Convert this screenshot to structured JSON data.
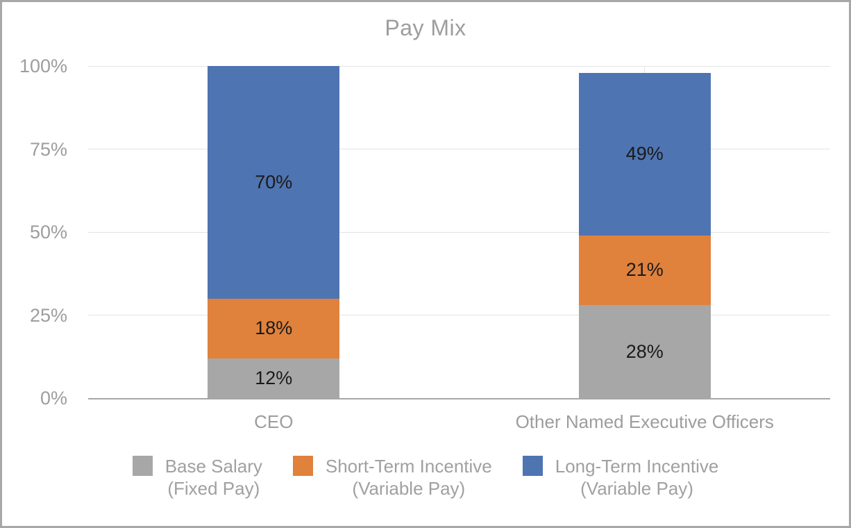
{
  "chart_data": {
    "type": "bar",
    "stacked": true,
    "title": "Pay Mix",
    "categories": [
      "CEO",
      "Other Named Executive Officers"
    ],
    "series": [
      {
        "name": "Base Salary (Fixed Pay)",
        "color": "#a7a7a7",
        "values": [
          12,
          28
        ]
      },
      {
        "name": "Short-Term Incentive (Variable Pay)",
        "color": "#e0813c",
        "values": [
          18,
          21
        ]
      },
      {
        "name": "Long-Term Incentive (Variable Pay)",
        "color": "#4e74b2",
        "values": [
          70,
          49
        ]
      }
    ],
    "data_labels": [
      "12%",
      "18%",
      "70%",
      "28%",
      "21%",
      "49%"
    ],
    "value_suffix": "%",
    "y_ticks": [
      "0%",
      "25%",
      "50%",
      "75%",
      "100%"
    ],
    "ylim": [
      0,
      100
    ],
    "grid": true,
    "legend_position": "bottom"
  },
  "legend": {
    "items": [
      {
        "line1": "Base Salary",
        "line2": "(Fixed Pay)",
        "series_index": 0
      },
      {
        "line1": "Short-Term Incentive",
        "line2": "(Variable Pay)",
        "series_index": 1
      },
      {
        "line1": "Long-Term Incentive",
        "line2": "(Variable Pay)",
        "series_index": 2
      }
    ]
  },
  "colors": {
    "border": "#a7a7a7",
    "axis_line": "#a6a6a6",
    "gridline": "#e3e3e3",
    "text_gray": "#9d9d9d",
    "data_label": "#1a1a1a",
    "background": "#ffffff"
  }
}
